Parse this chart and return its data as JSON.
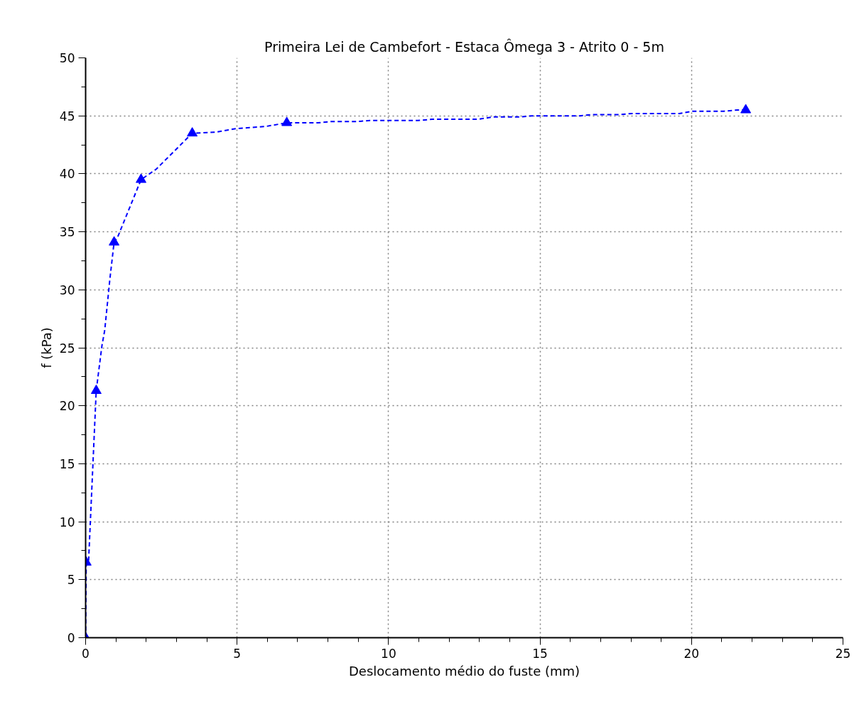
{
  "chart_data": {
    "type": "line",
    "title": "Primeira Lei de Cambefort - Estaca Ômega 3 - Atrito 0 - 5m",
    "xlabel": "Deslocamento médio do fuste (mm)",
    "ylabel": "f (kPa)",
    "series": [
      {
        "color": "#0000ff",
        "line_style": "dashed",
        "marker": "none",
        "x": [
          0,
          0.02,
          0.1,
          0.35,
          0.54,
          0.63,
          0.8,
          0.94,
          1.05,
          1.83,
          2.33,
          3.52,
          4.3,
          4.97,
          5.98,
          6.64,
          7.67,
          8.09,
          8.93,
          9.39,
          10.97,
          11.44,
          12.95,
          13.43,
          14.32,
          14.73,
          16.3,
          16.72,
          17.6,
          18.03,
          19.6,
          20.03,
          21.07,
          21.5,
          21.79
        ],
        "values": [
          0,
          6.5,
          6.7,
          21.3,
          25.2,
          26.5,
          30.9,
          34.1,
          34.5,
          39.5,
          40.4,
          43.5,
          43.6,
          43.9,
          44.1,
          44.4,
          44.4,
          44.5,
          44.5,
          44.6,
          44.6,
          44.7,
          44.7,
          44.9,
          44.9,
          45.0,
          45.0,
          45.1,
          45.1,
          45.2,
          45.2,
          45.4,
          45.4,
          45.5,
          45.5
        ]
      },
      {
        "type": "scatter",
        "color": "#0000ff",
        "marker": "triangle",
        "x": [
          0,
          0.02,
          0.35,
          0.94,
          1.83,
          3.52,
          6.64,
          21.79
        ],
        "values": [
          0,
          6.5,
          21.3,
          34.1,
          39.5,
          43.5,
          44.4,
          45.5
        ]
      }
    ],
    "xlim": [
      0,
      25
    ],
    "ylim": [
      0,
      50
    ],
    "xticks": [
      0,
      {
        "value": 1,
        "label": null
      },
      {
        "value": 2,
        "label": null
      },
      {
        "value": 3,
        "label": null
      },
      {
        "value": 4,
        "label": null
      },
      5,
      {
        "value": 6,
        "label": null
      },
      {
        "value": 7,
        "label": null
      },
      {
        "value": 8,
        "label": null
      },
      {
        "value": 9,
        "label": null
      },
      10,
      {
        "value": 11,
        "label": null
      },
      {
        "value": 12,
        "label": null
      },
      {
        "value": 13,
        "label": null
      },
      {
        "value": 14,
        "label": null
      },
      15,
      {
        "value": 16,
        "label": null
      },
      {
        "value": 17,
        "label": null
      },
      {
        "value": 18,
        "label": null
      },
      {
        "value": 19,
        "label": null
      },
      20,
      {
        "value": 21,
        "label": null
      },
      {
        "value": 22,
        "label": null
      },
      {
        "value": 23,
        "label": null
      },
      {
        "value": 24,
        "label": null
      },
      25
    ],
    "yticks": [
      0,
      {
        "value": 2.5,
        "label": null
      },
      5,
      {
        "value": 7.5,
        "label": null
      },
      10,
      {
        "value": 12.5,
        "label": null
      },
      15,
      {
        "value": 17.5,
        "label": null
      },
      20,
      {
        "value": 22.5,
        "label": null
      },
      25,
      {
        "value": 27.5,
        "label": null
      },
      30,
      {
        "value": 32.5,
        "label": null
      },
      35,
      {
        "value": 37.5,
        "label": null
      },
      40,
      {
        "value": 42.5,
        "label": null
      },
      45,
      {
        "value": 47.5,
        "label": null
      },
      50
    ],
    "grid": true
  }
}
